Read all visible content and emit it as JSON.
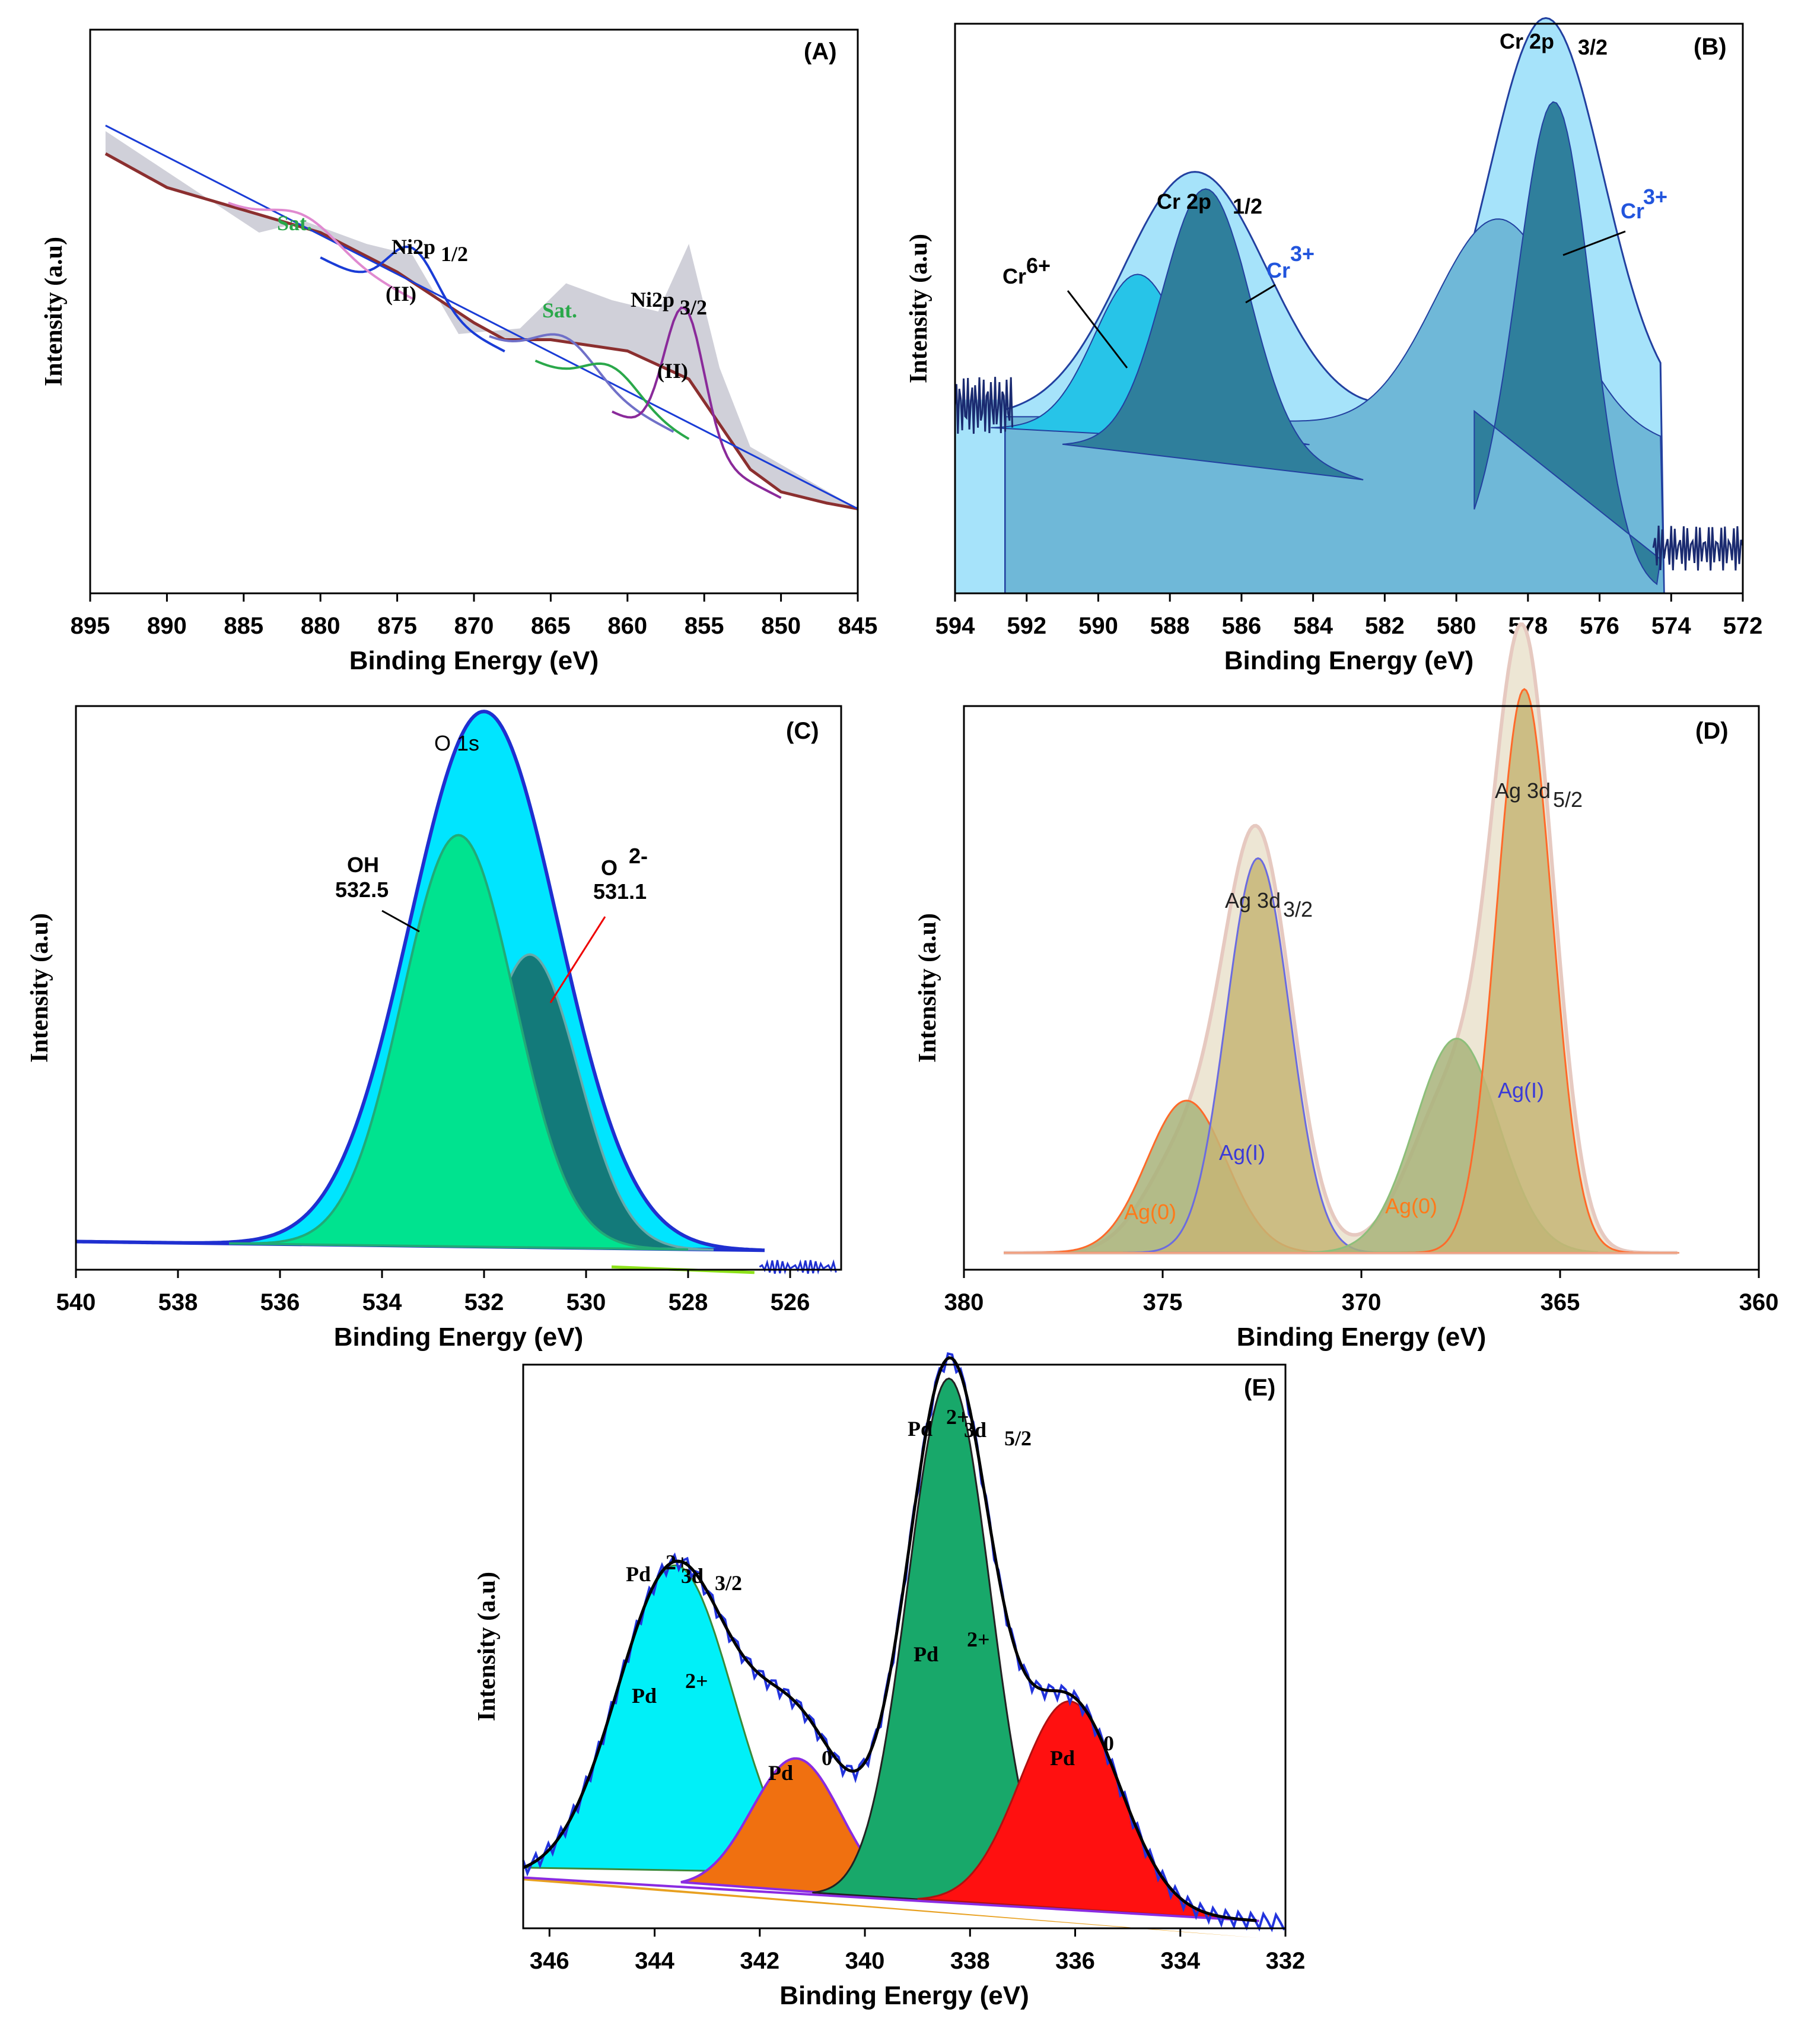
{
  "chart_data": [
    {
      "panel": "(A)",
      "type": "area",
      "xlabel": "Binding Energy (eV)",
      "ylabel": "Intensity (a.u)",
      "xlim": [
        895,
        845
      ],
      "xticks": [
        895,
        890,
        885,
        880,
        875,
        870,
        865,
        860,
        855,
        850,
        845
      ],
      "annotations": [
        "Sat.",
        "Ni2p",
        "1/2",
        "(II)",
        "Sat.",
        "Ni2p",
        "3/2",
        "(II)"
      ],
      "colors": {
        "envelope": "#c8c8d2",
        "raw": "#8b2f2f",
        "fit": "#1a3cd6",
        "sat": "#2aa84a",
        "sat2": "#e08ad0",
        "p32": "#8a2a9a"
      },
      "series": [
        {
          "role": "raw",
          "x": [
            894,
            890,
            885,
            880,
            875,
            870,
            868,
            865,
            860,
            856,
            852,
            850,
            847,
            845
          ],
          "y": [
            0.78,
            0.72,
            0.68,
            0.64,
            0.57,
            0.48,
            0.45,
            0.45,
            0.43,
            0.38,
            0.22,
            0.18,
            0.16,
            0.15
          ]
        },
        {
          "role": "envelope",
          "x": [
            894,
            884,
            881,
            877,
            874,
            871,
            867,
            864,
            861,
            858,
            856,
            854,
            852,
            845
          ],
          "y": [
            0.82,
            0.64,
            0.66,
            0.62,
            0.6,
            0.46,
            0.47,
            0.55,
            0.52,
            0.5,
            0.62,
            0.4,
            0.26,
            0.15
          ]
        }
      ],
      "peaks": [
        {
          "label": "Ni2p1/2",
          "x": 874.0
        },
        {
          "label": "Sat.",
          "x": 881.0
        },
        {
          "label": "Ni2p3/2",
          "x": 856.3
        },
        {
          "label": "Sat.",
          "x": 863.8
        }
      ]
    },
    {
      "panel": "(B)",
      "type": "area",
      "xlabel": "Binding Energy (eV)",
      "ylabel": "Intensity (a.u)",
      "xlim": [
        594,
        572
      ],
      "xticks": [
        594,
        592,
        590,
        588,
        586,
        584,
        582,
        580,
        578,
        576,
        574,
        572
      ],
      "annotations": [
        "Cr 2p",
        "3/2",
        "Cr 2p",
        "1/2",
        "Cr",
        "6+",
        "Cr",
        "3+",
        "Cr",
        "3+"
      ],
      "colors": {
        "envelope": "#a6e3fa",
        "bg": "#6fb8d8",
        "cr6": "#27c4e8",
        "cr3": "#2f7f9c",
        "line": "#2240a0"
      },
      "peaks": [
        {
          "label": "Cr 2p1/2 envelope",
          "x": 587.3,
          "height": 0.8
        },
        {
          "label": "Cr6+",
          "x": 588.9,
          "height": 0.59
        },
        {
          "label": "Cr3+",
          "x": 587.0,
          "height": 0.72
        },
        {
          "label": "Cr 2p3/2 envelope",
          "x": 577.5,
          "height": 1.0
        },
        {
          "label": "Cr6+",
          "x": 578.8,
          "height": 0.69
        },
        {
          "label": "Cr3+",
          "x": 577.2,
          "height": 0.8
        }
      ]
    },
    {
      "panel": "(C)",
      "type": "area",
      "xlabel": "Binding Energy (eV)",
      "ylabel": "Intensity (a.u)",
      "xlim": [
        540,
        525
      ],
      "xticks": [
        540,
        538,
        536,
        534,
        532,
        530,
        528,
        526
      ],
      "annotations": [
        "O 1s",
        "OH",
        "532.5",
        "O",
        "2-",
        "531.1"
      ],
      "colors": {
        "envelope": "#00e5ff",
        "oh": "#00e38f",
        "o2": "#137a7a",
        "line": "#1f2fd0"
      },
      "peaks": [
        {
          "label": "O 1s",
          "x": 532.0,
          "height": 1.0
        },
        {
          "label": "OH",
          "x": 532.5,
          "height": 0.78
        },
        {
          "label": "O2-",
          "x": 531.1,
          "height": 0.58
        }
      ]
    },
    {
      "panel": "(D)",
      "type": "area",
      "xlabel": "Binding Energy (eV)",
      "ylabel": "Intensity (a.u)",
      "xlim": [
        380,
        360
      ],
      "xticks": [
        380,
        375,
        370,
        365,
        360
      ],
      "annotations": [
        "Ag 3d",
        "3/2",
        "Ag 3d",
        "5/2",
        "Ag(I)",
        "Ag(0)",
        "Ag(I)",
        "Ag(0)"
      ],
      "colors": {
        "envelope": "#ede6d4",
        "agI": "#c6b575",
        "ag0": "#a8b37a",
        "ag0line": "#ff6a2a",
        "agIline": "#6b6be0"
      },
      "peaks": [
        {
          "label": "Ag 3d3/2 Ag(I)",
          "x": 372.6,
          "height": 0.7
        },
        {
          "label": "Ag 3d3/2 Ag(0)",
          "x": 374.4,
          "height": 0.27
        },
        {
          "label": "Ag 3d5/2 Ag(I)",
          "x": 365.9,
          "height": 1.0
        },
        {
          "label": "Ag 3d5/2 Ag(0)",
          "x": 367.6,
          "height": 0.38
        }
      ]
    },
    {
      "panel": "(E)",
      "type": "area",
      "xlabel": "Binding Energy (eV)",
      "ylabel": "Intensity (a.u)",
      "xlim": [
        346.5,
        332
      ],
      "xticks": [
        346,
        344,
        342,
        340,
        338,
        336,
        334,
        332
      ],
      "annotations": [
        "Pd",
        "2+",
        "3d",
        "3/2",
        "Pd",
        "2+",
        "3d",
        "5/2",
        "Pd",
        "2+",
        "Pd",
        "2+",
        "Pd",
        "0",
        "Pd",
        "0"
      ],
      "colors": {
        "pd2_32": "#00f0f8",
        "pd2_52": "#18a86a",
        "pd0_a": "#f07010",
        "pd0_b": "#ff1010",
        "fit": "#000000",
        "raw": "#2233dd",
        "bg": "#8a2be2"
      },
      "peaks": [
        {
          "label": "Pd2+ 3d3/2",
          "x": 343.6,
          "height": 0.58
        },
        {
          "label": "Pd0",
          "x": 341.3,
          "height": 0.23
        },
        {
          "label": "Pd2+ 3d5/2",
          "x": 338.4,
          "height": 1.0
        },
        {
          "label": "Pd0",
          "x": 336.1,
          "height": 0.4
        }
      ]
    }
  ]
}
